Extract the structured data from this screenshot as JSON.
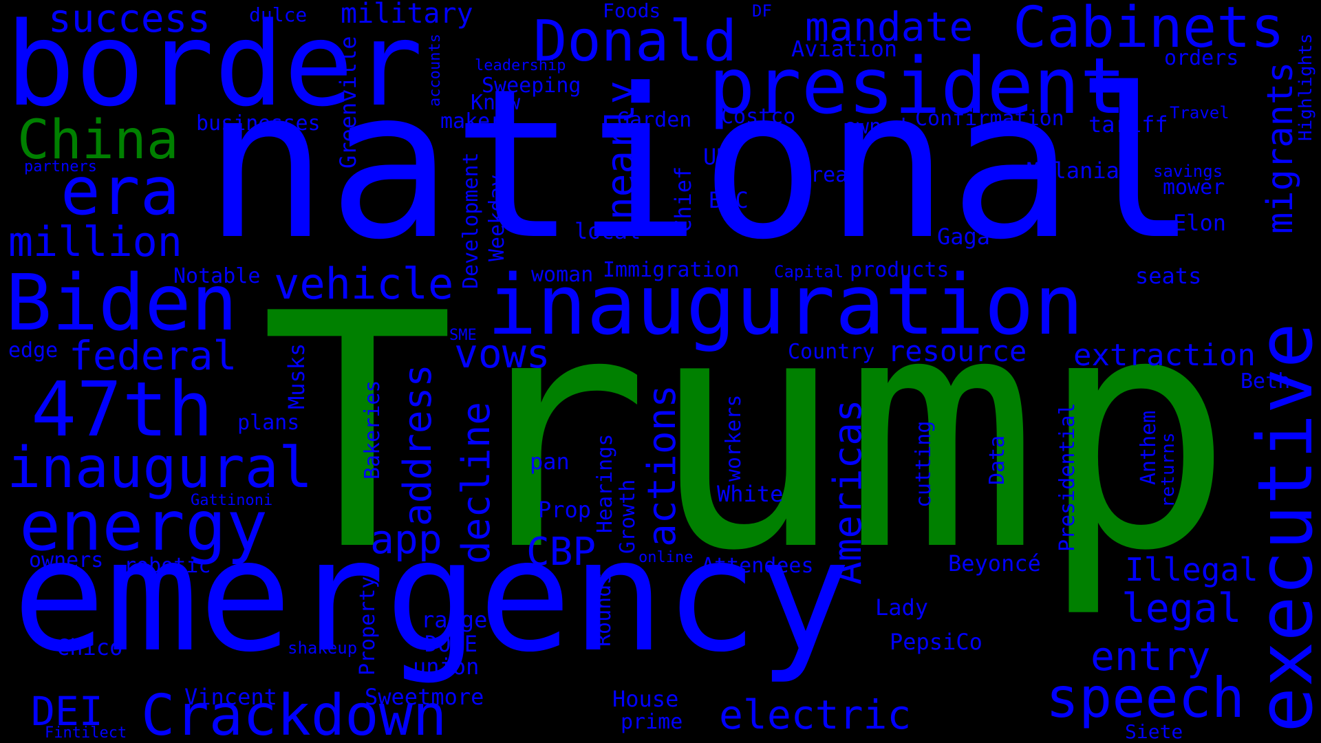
{
  "colors": {
    "background": "#000000",
    "primary": "#0000ff",
    "highlight": "#008000"
  },
  "words": [
    {
      "text": "Trump",
      "color": "highlight"
    },
    {
      "text": "national",
      "color": "primary"
    },
    {
      "text": "emergency",
      "color": "primary"
    },
    {
      "text": "border",
      "color": "primary"
    },
    {
      "text": "inauguration",
      "color": "primary"
    },
    {
      "text": "president",
      "color": "primary"
    },
    {
      "text": "executive",
      "color": "primary"
    },
    {
      "text": "China",
      "color": "highlight"
    },
    {
      "text": "Biden",
      "color": "primary"
    },
    {
      "text": "Donald",
      "color": "primary"
    },
    {
      "text": "Cabinets",
      "color": "primary"
    },
    {
      "text": "mandate",
      "color": "primary"
    },
    {
      "text": "success",
      "color": "primary"
    },
    {
      "text": "military",
      "color": "primary"
    },
    {
      "text": "era",
      "color": "primary"
    },
    {
      "text": "million",
      "color": "primary"
    },
    {
      "text": "47th",
      "color": "primary"
    },
    {
      "text": "inaugural",
      "color": "primary"
    },
    {
      "text": "energy",
      "color": "primary"
    },
    {
      "text": "Crackdown",
      "color": "primary"
    },
    {
      "text": "speech",
      "color": "primary"
    },
    {
      "text": "vehicle",
      "color": "primary"
    },
    {
      "text": "federal",
      "color": "primary"
    },
    {
      "text": "vows",
      "color": "primary"
    },
    {
      "text": "address",
      "color": "primary"
    },
    {
      "text": "decline",
      "color": "primary"
    },
    {
      "text": "actions",
      "color": "primary"
    },
    {
      "text": "Americas",
      "color": "primary"
    },
    {
      "text": "migrants",
      "color": "primary"
    },
    {
      "text": "nearly",
      "color": "primary"
    },
    {
      "text": "CBP",
      "color": "primary"
    },
    {
      "text": "app",
      "color": "primary"
    },
    {
      "text": "electric",
      "color": "primary"
    },
    {
      "text": "legal",
      "color": "primary"
    },
    {
      "text": "entry",
      "color": "primary"
    },
    {
      "text": "Illegal",
      "color": "primary"
    },
    {
      "text": "extraction",
      "color": "primary"
    },
    {
      "text": "resource",
      "color": "primary"
    },
    {
      "text": "DEI",
      "color": "primary"
    },
    {
      "text": "dulce",
      "color": "primary"
    },
    {
      "text": "Foods",
      "color": "primary"
    },
    {
      "text": "DF",
      "color": "primary"
    },
    {
      "text": "Aviation",
      "color": "primary"
    },
    {
      "text": "orders",
      "color": "primary"
    },
    {
      "text": "leadership",
      "color": "primary"
    },
    {
      "text": "accounts",
      "color": "primary"
    },
    {
      "text": "Greenville",
      "color": "primary"
    },
    {
      "text": "Sweeping",
      "color": "primary"
    },
    {
      "text": "Know",
      "color": "primary"
    },
    {
      "text": "maker",
      "color": "primary"
    },
    {
      "text": "Garden",
      "color": "primary"
    },
    {
      "text": "Costco",
      "color": "primary"
    },
    {
      "text": "owned",
      "color": "primary"
    },
    {
      "text": "Confirmation",
      "color": "primary"
    },
    {
      "text": "tariff",
      "color": "primary"
    },
    {
      "text": "Travel",
      "color": "primary"
    },
    {
      "text": "Highlights",
      "color": "primary"
    },
    {
      "text": "businesses",
      "color": "primary"
    },
    {
      "text": "partners",
      "color": "primary"
    },
    {
      "text": "UK",
      "color": "primary"
    },
    {
      "text": "area",
      "color": "primary"
    },
    {
      "text": "Melania",
      "color": "primary"
    },
    {
      "text": "savings",
      "color": "primary"
    },
    {
      "text": "mower",
      "color": "primary"
    },
    {
      "text": "BBC",
      "color": "primary"
    },
    {
      "text": "Chief",
      "color": "primary"
    },
    {
      "text": "Development",
      "color": "primary"
    },
    {
      "text": "Weekday",
      "color": "primary"
    },
    {
      "text": "local",
      "color": "primary"
    },
    {
      "text": "Gaga",
      "color": "primary"
    },
    {
      "text": "Elon",
      "color": "primary"
    },
    {
      "text": "Notable",
      "color": "primary"
    },
    {
      "text": "woman",
      "color": "primary"
    },
    {
      "text": "Immigration",
      "color": "primary"
    },
    {
      "text": "Capital",
      "color": "primary"
    },
    {
      "text": "products",
      "color": "primary"
    },
    {
      "text": "seats",
      "color": "primary"
    },
    {
      "text": "SME",
      "color": "primary"
    },
    {
      "text": "edge",
      "color": "primary"
    },
    {
      "text": "Country",
      "color": "primary"
    },
    {
      "text": "Beth",
      "color": "primary"
    },
    {
      "text": "Musks",
      "color": "primary"
    },
    {
      "text": "plans",
      "color": "primary"
    },
    {
      "text": "Bakeries",
      "color": "primary"
    },
    {
      "text": "workers",
      "color": "primary"
    },
    {
      "text": "cutting",
      "color": "primary"
    },
    {
      "text": "Data",
      "color": "primary"
    },
    {
      "text": "Presidential",
      "color": "primary"
    },
    {
      "text": "Anthem",
      "color": "primary"
    },
    {
      "text": "returns",
      "color": "primary"
    },
    {
      "text": "pan",
      "color": "primary"
    },
    {
      "text": "Hearings",
      "color": "primary"
    },
    {
      "text": "Growth",
      "color": "primary"
    },
    {
      "text": "White",
      "color": "primary"
    },
    {
      "text": "Gattinoni",
      "color": "primary"
    },
    {
      "text": "Prop",
      "color": "primary"
    },
    {
      "text": "owners",
      "color": "primary"
    },
    {
      "text": "robotic",
      "color": "primary"
    },
    {
      "text": "online",
      "color": "primary"
    },
    {
      "text": "Attendees",
      "color": "primary"
    },
    {
      "text": "Beyoncé",
      "color": "primary"
    },
    {
      "text": "Property",
      "color": "primary"
    },
    {
      "text": "Rounds",
      "color": "primary"
    },
    {
      "text": "range",
      "color": "primary"
    },
    {
      "text": "Lady",
      "color": "primary"
    },
    {
      "text": "Chico",
      "color": "primary"
    },
    {
      "text": "shakeup",
      "color": "primary"
    },
    {
      "text": "DOGE",
      "color": "primary"
    },
    {
      "text": "PepsiCo",
      "color": "primary"
    },
    {
      "text": "union",
      "color": "primary"
    },
    {
      "text": "Vincent",
      "color": "primary"
    },
    {
      "text": "Sweetmore",
      "color": "primary"
    },
    {
      "text": "House",
      "color": "primary"
    },
    {
      "text": "prime",
      "color": "primary"
    },
    {
      "text": "Fintilect",
      "color": "primary"
    },
    {
      "text": "Siete",
      "color": "primary"
    }
  ]
}
